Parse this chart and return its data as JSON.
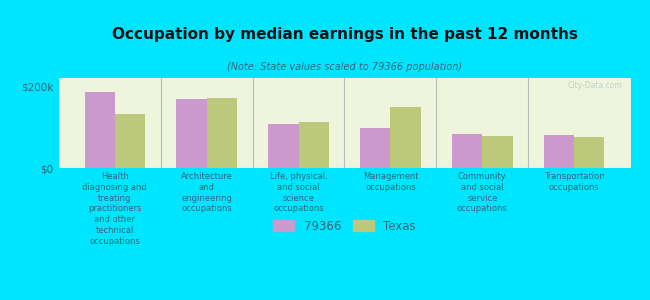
{
  "title": "Occupation by median earnings in the past 12 months",
  "subtitle": "(Note: State values scaled to 79366 population)",
  "categories": [
    "Health\ndiagnosing and\ntreating\npractitioners\nand other\ntechnical\noccupations",
    "Architecture\nand\nengineering\noccupations",
    "Life, physical,\nand social\nscience\noccupations",
    "Management\noccupations",
    "Community\nand social\nservice\noccupations",
    "Transportation\noccupations"
  ],
  "values_79366": [
    185000,
    168000,
    108000,
    98000,
    82000,
    80000
  ],
  "values_texas": [
    132000,
    172000,
    113000,
    148000,
    78000,
    75000
  ],
  "ylim": [
    0,
    220000
  ],
  "yticks": [
    0,
    200000
  ],
  "ytick_labels": [
    "$0",
    "$200k"
  ],
  "color_79366": "#cc99cc",
  "color_texas": "#bcc87a",
  "background_color": "#00e5ff",
  "plot_bg_color": "#eef5dc",
  "legend_labels": [
    "79366",
    "Texas"
  ],
  "watermark": "City-Data.com"
}
